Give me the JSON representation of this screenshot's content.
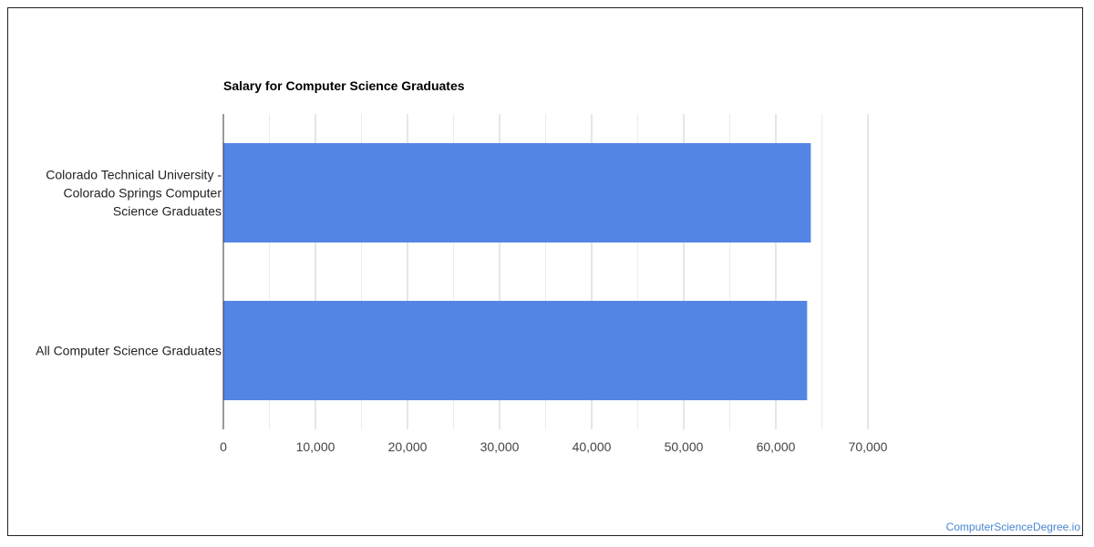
{
  "watermark": "ComputerScienceDegree.io",
  "chart_data": {
    "type": "bar",
    "orientation": "horizontal",
    "title": "Salary for Computer Science Graduates",
    "xlabel": "",
    "ylabel": "",
    "categories": [
      [
        "Colorado Technical University -",
        "Colorado Springs Computer",
        "Science Graduates"
      ],
      [
        "All Computer Science Graduates"
      ]
    ],
    "values": [
      63800,
      63400
    ],
    "xlim": [
      0,
      70000
    ],
    "ticks": [
      "0",
      "10,000",
      "20,000",
      "30,000",
      "40,000",
      "50,000",
      "60,000",
      "70,000"
    ],
    "tick_values": [
      0,
      10000,
      20000,
      30000,
      40000,
      50000,
      60000,
      70000
    ],
    "grid": true,
    "bar_color": "#5386e4",
    "legend": "none"
  }
}
